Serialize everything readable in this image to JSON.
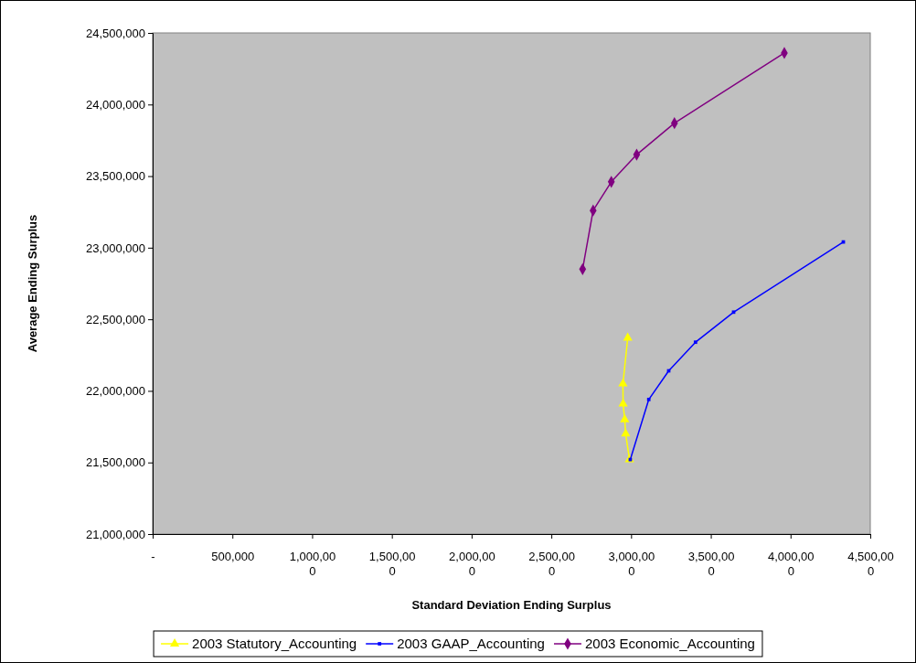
{
  "chart_data": {
    "type": "line",
    "xlabel": "Standard Deviation Ending Surplus",
    "ylabel": "Average Ending Surplus",
    "xlim": [
      0,
      4500000
    ],
    "ylim": [
      21000000,
      24500000
    ],
    "xticks": [
      {
        "value": 0,
        "label": "-"
      },
      {
        "value": 500000,
        "label": "500,000"
      },
      {
        "value": 1000000,
        "label": "1,000,000"
      },
      {
        "value": 1500000,
        "label": "1,500,000"
      },
      {
        "value": 2000000,
        "label": "2,000,000"
      },
      {
        "value": 2500000,
        "label": "2,500,000"
      },
      {
        "value": 3000000,
        "label": "3,000,000"
      },
      {
        "value": 3500000,
        "label": "3,500,000"
      },
      {
        "value": 4000000,
        "label": "4,000,000"
      },
      {
        "value": 4500000,
        "label": "4,500,000"
      }
    ],
    "yticks": [
      {
        "value": 21000000,
        "label": "21,000,000"
      },
      {
        "value": 21500000,
        "label": "21,500,000"
      },
      {
        "value": 22000000,
        "label": "22,000,000"
      },
      {
        "value": 22500000,
        "label": "22,500,000"
      },
      {
        "value": 23000000,
        "label": "23,000,000"
      },
      {
        "value": 23500000,
        "label": "23,500,000"
      },
      {
        "value": 24000000,
        "label": "24,000,000"
      },
      {
        "value": 24500000,
        "label": "24,500,000"
      }
    ],
    "grid": false,
    "legend": "bottom",
    "series": [
      {
        "name": "2003 Statutory_Accounting",
        "color": "#ffff00",
        "marker": "triangle",
        "x": [
          2990000,
          2966000,
          2960000,
          2950000,
          2949000,
          2979000
        ],
        "values": [
          21520000,
          21700000,
          21800000,
          21910000,
          22050000,
          22370000
        ]
      },
      {
        "name": "2003 GAAP_Accounting",
        "color": "#0000ff",
        "marker": "square",
        "x": [
          2995000,
          3111000,
          3236000,
          3404000,
          3643000,
          4331000
        ],
        "values": [
          21520000,
          21940000,
          22140000,
          22340000,
          22550000,
          23040000
        ]
      },
      {
        "name": "2003 Economic_Accounting",
        "color": "#800080",
        "marker": "diamond",
        "x": [
          2696000,
          2762000,
          2876000,
          3035000,
          3272000,
          3961000
        ],
        "values": [
          22850000,
          23260000,
          23460000,
          23650000,
          23870000,
          24360000
        ]
      }
    ]
  }
}
